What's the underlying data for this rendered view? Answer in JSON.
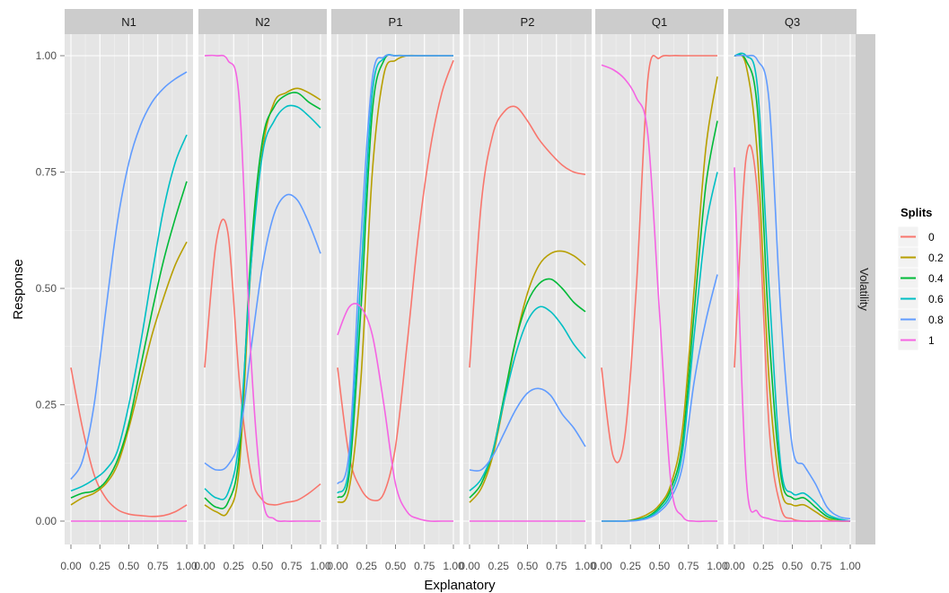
{
  "chart_data": {
    "type": "line",
    "title": "",
    "xlabel": "Explanatory",
    "ylabel": "Response",
    "row_strip": "Volatility",
    "xlim": [
      0,
      1
    ],
    "ylim": [
      0,
      1
    ],
    "x_ticks": [
      "0.00",
      "0.25",
      "0.50",
      "0.75",
      "1.00"
    ],
    "y_ticks": [
      "0.00",
      "0.25",
      "0.50",
      "0.75",
      "1.00"
    ],
    "grid": true,
    "legend": {
      "title": "Splits",
      "placement": "right",
      "entries": [
        "0",
        "0.2",
        "0.4",
        "0.6",
        "0.8",
        "1"
      ]
    },
    "colors": {
      "0": "#F8766D",
      "0.2": "#B79F00",
      "0.4": "#00BA38",
      "0.6": "#00BFC4",
      "0.8": "#619CFF",
      "1": "#F564E3"
    },
    "x": [
      0,
      0.1,
      0.2,
      0.3,
      0.4,
      0.5,
      0.6,
      0.7,
      0.8,
      0.9,
      1.0
    ],
    "panels": [
      {
        "name": "N1",
        "series": [
          {
            "name": "0",
            "values": [
              0.33,
              0.2,
              0.1,
              0.05,
              0.025,
              0.015,
              0.012,
              0.01,
              0.012,
              0.02,
              0.035
            ]
          },
          {
            "name": "0.2",
            "values": [
              0.035,
              0.05,
              0.06,
              0.08,
              0.12,
              0.2,
              0.3,
              0.4,
              0.48,
              0.55,
              0.6
            ]
          },
          {
            "name": "0.4",
            "values": [
              0.05,
              0.06,
              0.065,
              0.085,
              0.13,
              0.21,
              0.33,
              0.45,
              0.56,
              0.65,
              0.73
            ]
          },
          {
            "name": "0.6",
            "values": [
              0.065,
              0.075,
              0.09,
              0.11,
              0.15,
              0.25,
              0.38,
              0.53,
              0.67,
              0.77,
              0.83
            ]
          },
          {
            "name": "0.8",
            "values": [
              0.09,
              0.13,
              0.25,
              0.45,
              0.64,
              0.77,
              0.85,
              0.9,
              0.93,
              0.95,
              0.965
            ]
          },
          {
            "name": "1",
            "values": [
              0,
              0,
              0,
              0,
              0,
              0,
              0,
              0,
              0,
              0,
              0
            ]
          }
        ]
      },
      {
        "name": "N2",
        "series": [
          {
            "name": "0",
            "values": [
              0.33,
              0.6,
              0.62,
              0.3,
              0.1,
              0.045,
              0.035,
              0.04,
              0.045,
              0.06,
              0.08
            ]
          },
          {
            "name": "0.2",
            "values": [
              0.035,
              0.02,
              0.02,
              0.12,
              0.55,
              0.8,
              0.9,
              0.92,
              0.93,
              0.92,
              0.905
            ]
          },
          {
            "name": "0.4",
            "values": [
              0.05,
              0.03,
              0.04,
              0.15,
              0.58,
              0.82,
              0.89,
              0.915,
              0.92,
              0.9,
              0.885
            ]
          },
          {
            "name": "0.6",
            "values": [
              0.07,
              0.05,
              0.06,
              0.18,
              0.55,
              0.79,
              0.86,
              0.89,
              0.89,
              0.87,
              0.845
            ]
          },
          {
            "name": "0.8",
            "values": [
              0.125,
              0.11,
              0.12,
              0.18,
              0.37,
              0.55,
              0.66,
              0.7,
              0.69,
              0.64,
              0.575
            ]
          },
          {
            "name": "1",
            "values": [
              1.0,
              1.0,
              0.99,
              0.9,
              0.35,
              0.05,
              0.005,
              0,
              0,
              0,
              0
            ]
          }
        ]
      },
      {
        "name": "P1",
        "series": [
          {
            "name": "0",
            "values": [
              0.33,
              0.14,
              0.07,
              0.045,
              0.06,
              0.16,
              0.38,
              0.62,
              0.8,
              0.92,
              0.99
            ]
          },
          {
            "name": "0.2",
            "values": [
              0.04,
              0.07,
              0.3,
              0.75,
              0.96,
              0.99,
              1.0,
              1.0,
              1.0,
              1.0,
              1.0
            ]
          },
          {
            "name": "0.4",
            "values": [
              0.05,
              0.1,
              0.45,
              0.88,
              0.99,
              1.0,
              1.0,
              1.0,
              1.0,
              1.0,
              1.0
            ]
          },
          {
            "name": "0.6",
            "values": [
              0.06,
              0.12,
              0.52,
              0.92,
              0.995,
              1.0,
              1.0,
              1.0,
              1.0,
              1.0,
              1.0
            ]
          },
          {
            "name": "0.8",
            "values": [
              0.08,
              0.15,
              0.6,
              0.95,
              0.997,
              1.0,
              1.0,
              1.0,
              1.0,
              1.0,
              1.0
            ]
          },
          {
            "name": "1",
            "values": [
              0.4,
              0.46,
              0.46,
              0.4,
              0.25,
              0.08,
              0.02,
              0.005,
              0,
              0,
              0
            ]
          }
        ]
      },
      {
        "name": "P2",
        "series": [
          {
            "name": "0",
            "values": [
              0.33,
              0.68,
              0.83,
              0.88,
              0.89,
              0.86,
              0.82,
              0.79,
              0.765,
              0.75,
              0.745
            ]
          },
          {
            "name": "0.2",
            "values": [
              0.04,
              0.07,
              0.14,
              0.26,
              0.39,
              0.49,
              0.55,
              0.575,
              0.58,
              0.57,
              0.55
            ]
          },
          {
            "name": "0.4",
            "values": [
              0.05,
              0.08,
              0.15,
              0.27,
              0.39,
              0.47,
              0.51,
              0.52,
              0.5,
              0.47,
              0.45
            ]
          },
          {
            "name": "0.6",
            "values": [
              0.065,
              0.09,
              0.15,
              0.26,
              0.36,
              0.43,
              0.46,
              0.45,
              0.42,
              0.38,
              0.35
            ]
          },
          {
            "name": "0.8",
            "values": [
              0.11,
              0.11,
              0.14,
              0.19,
              0.24,
              0.275,
              0.285,
              0.27,
              0.23,
              0.2,
              0.16
            ]
          },
          {
            "name": "1",
            "values": [
              0,
              0,
              0,
              0,
              0,
              0,
              0,
              0,
              0,
              0,
              0
            ]
          }
        ]
      },
      {
        "name": "Q1",
        "series": [
          {
            "name": "0",
            "values": [
              0.33,
              0.14,
              0.18,
              0.5,
              0.95,
              0.995,
              1.0,
              1.0,
              1.0,
              1.0,
              1.0
            ]
          },
          {
            "name": "0.2",
            "values": [
              0,
              0,
              0,
              0.005,
              0.015,
              0.035,
              0.08,
              0.2,
              0.5,
              0.8,
              0.955
            ]
          },
          {
            "name": "0.4",
            "values": [
              0,
              0,
              0,
              0.003,
              0.01,
              0.03,
              0.07,
              0.17,
              0.45,
              0.72,
              0.86
            ]
          },
          {
            "name": "0.6",
            "values": [
              0,
              0,
              0,
              0.002,
              0.008,
              0.025,
              0.06,
              0.15,
              0.4,
              0.63,
              0.75
            ]
          },
          {
            "name": "0.8",
            "values": [
              0,
              0,
              0,
              0.001,
              0.006,
              0.02,
              0.05,
              0.12,
              0.3,
              0.43,
              0.53
            ]
          },
          {
            "name": "1",
            "values": [
              0.98,
              0.97,
              0.95,
              0.91,
              0.83,
              0.45,
              0.08,
              0.01,
              0,
              0,
              0
            ]
          }
        ]
      },
      {
        "name": "Q3",
        "series": [
          {
            "name": "0",
            "values": [
              0.33,
              0.78,
              0.7,
              0.2,
              0.03,
              0.005,
              0,
              0,
              0,
              0,
              0
            ]
          },
          {
            "name": "0.2",
            "values": [
              1.0,
              0.98,
              0.78,
              0.3,
              0.07,
              0.035,
              0.035,
              0.02,
              0.005,
              0,
              0
            ]
          },
          {
            "name": "0.4",
            "values": [
              1.0,
              0.99,
              0.88,
              0.4,
              0.1,
              0.05,
              0.05,
              0.03,
              0.01,
              0.003,
              0
            ]
          },
          {
            "name": "0.6",
            "values": [
              1.0,
              1.0,
              0.93,
              0.5,
              0.12,
              0.06,
              0.06,
              0.04,
              0.015,
              0.005,
              0
            ]
          },
          {
            "name": "0.8",
            "values": [
              1.0,
              1.0,
              0.99,
              0.9,
              0.45,
              0.16,
              0.12,
              0.08,
              0.03,
              0.01,
              0.005
            ]
          },
          {
            "name": "1",
            "values": [
              0.76,
              0.1,
              0.02,
              0.005,
              0,
              0,
              0,
              0,
              0,
              0,
              0
            ]
          }
        ]
      }
    ]
  }
}
